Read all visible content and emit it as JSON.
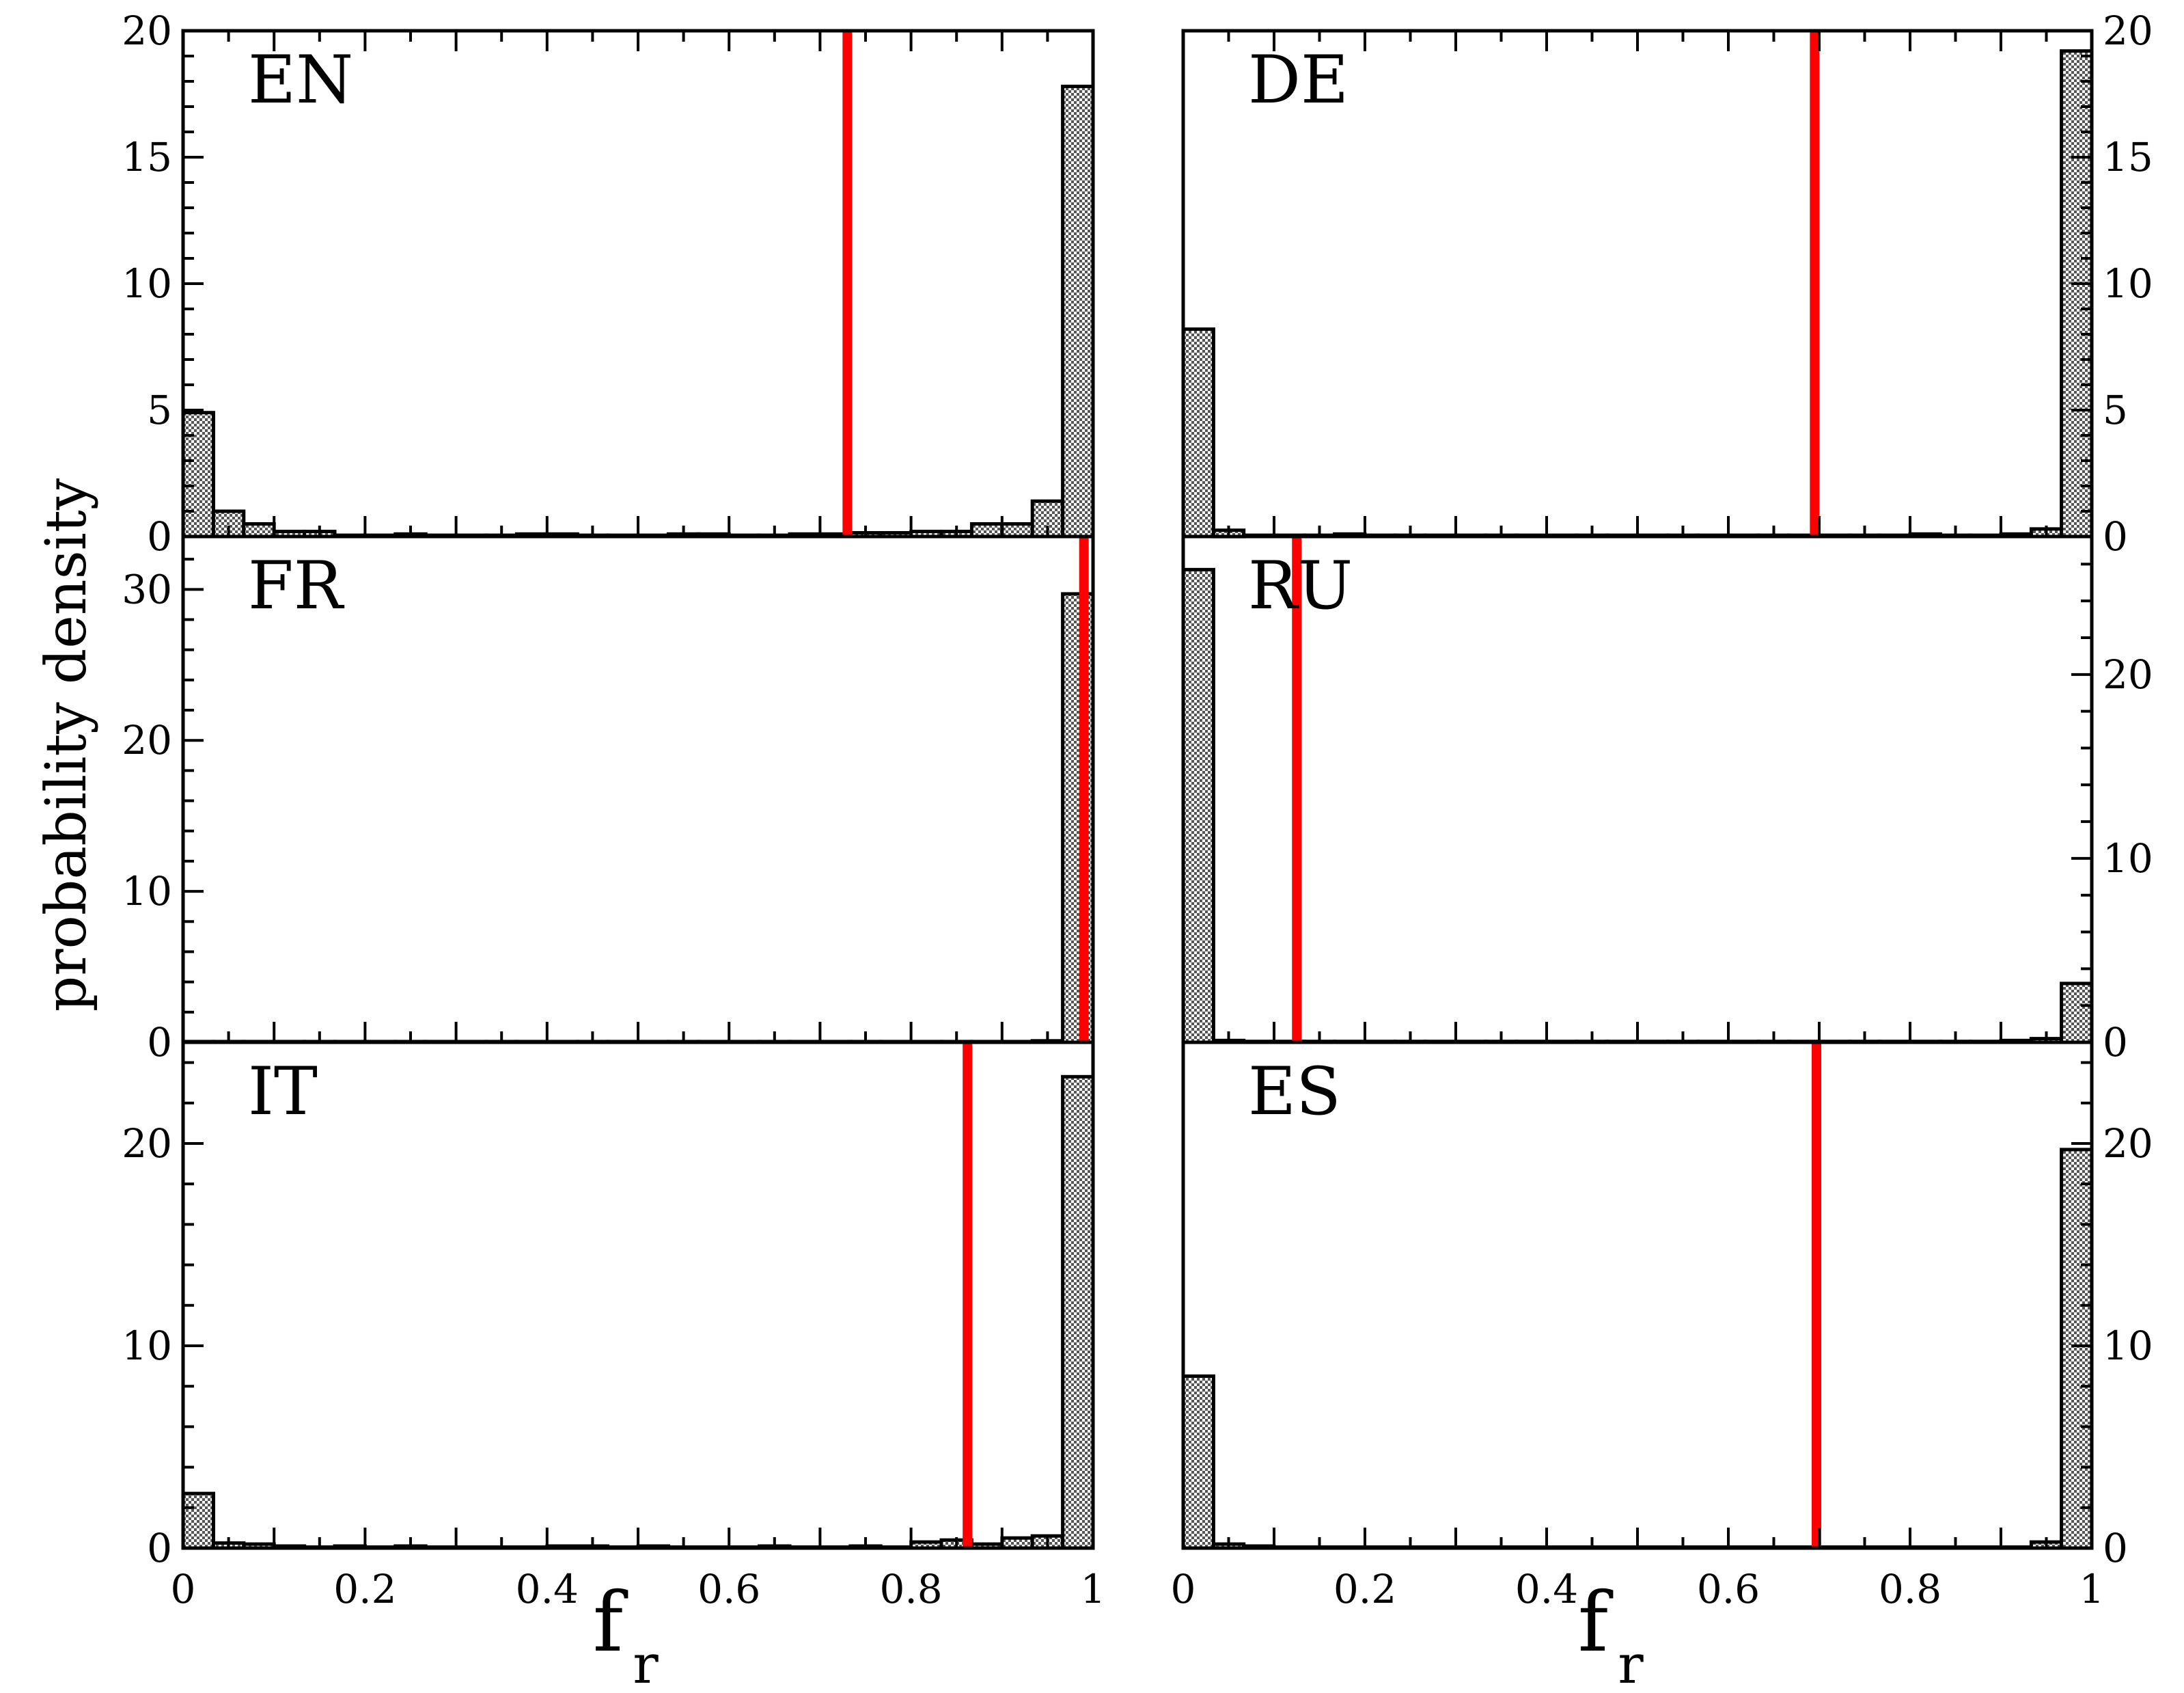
{
  "colors": {
    "bar_fill": "#b8b8b8",
    "bar_stroke": "#000000",
    "marker_line": "#ff0000",
    "background": "#ffffff"
  },
  "ylabel": "probability density",
  "xlabel": {
    "main": "f",
    "sub": "r"
  },
  "chart_data": [
    {
      "type": "bar",
      "label": "EN",
      "grid": false,
      "xlim": [
        0,
        1
      ],
      "ylim": [
        0,
        20
      ],
      "ytick_side": "left",
      "show_ylabels": true,
      "yticks": [
        "0",
        "5",
        "10",
        "15",
        "20"
      ],
      "bin_width": 0.0333,
      "x": [
        0.0167,
        0.05,
        0.0833,
        0.1167,
        0.15,
        0.1833,
        0.2167,
        0.25,
        0.2833,
        0.3167,
        0.35,
        0.3833,
        0.4167,
        0.45,
        0.4833,
        0.5167,
        0.55,
        0.5833,
        0.6167,
        0.65,
        0.6833,
        0.7167,
        0.75,
        0.7833,
        0.8167,
        0.85,
        0.8833,
        0.9167,
        0.95,
        0.9833
      ],
      "values": [
        4.9,
        1.0,
        0.5,
        0.2,
        0.2,
        0.05,
        0.05,
        0.1,
        0.05,
        0.05,
        0.05,
        0.1,
        0.1,
        0.05,
        0.05,
        0.05,
        0.1,
        0.1,
        0.05,
        0.05,
        0.1,
        0.1,
        0.15,
        0.15,
        0.2,
        0.2,
        0.5,
        0.5,
        1.4,
        17.8
      ],
      "marker_x": 0.73
    },
    {
      "type": "bar",
      "label": "DE",
      "grid": false,
      "xlim": [
        0,
        1
      ],
      "ylim": [
        0,
        20
      ],
      "ytick_side": "right",
      "show_ylabels": true,
      "yticks": [
        "0",
        "5",
        "10",
        "15",
        "20"
      ],
      "bin_width": 0.0333,
      "x": [
        0.0167,
        0.05,
        0.0833,
        0.1167,
        0.15,
        0.1833,
        0.2167,
        0.25,
        0.2833,
        0.3167,
        0.35,
        0.3833,
        0.4167,
        0.45,
        0.4833,
        0.5167,
        0.55,
        0.5833,
        0.6167,
        0.65,
        0.6833,
        0.7167,
        0.75,
        0.7833,
        0.8167,
        0.85,
        0.8833,
        0.9167,
        0.95,
        0.9833
      ],
      "values": [
        8.2,
        0.25,
        0.05,
        0.05,
        0.05,
        0.1,
        0.05,
        0.05,
        0.05,
        0.05,
        0.05,
        0.05,
        0.05,
        0.05,
        0.05,
        0.05,
        0.05,
        0.05,
        0.05,
        0.05,
        0.05,
        0.05,
        0.05,
        0.05,
        0.1,
        0.05,
        0.05,
        0.1,
        0.3,
        19.2
      ],
      "marker_x": 0.695
    },
    {
      "type": "bar",
      "label": "FR",
      "grid": false,
      "xlim": [
        0,
        1
      ],
      "ylim": [
        0,
        33.5
      ],
      "ytick_side": "left",
      "show_ylabels": true,
      "yticks": [
        "0",
        "10",
        "20",
        "30"
      ],
      "bin_width": 0.0333,
      "x": [
        0.0167,
        0.05,
        0.0833,
        0.1167,
        0.15,
        0.1833,
        0.2167,
        0.25,
        0.2833,
        0.3167,
        0.35,
        0.3833,
        0.4167,
        0.45,
        0.4833,
        0.5167,
        0.55,
        0.5833,
        0.6167,
        0.65,
        0.6833,
        0.7167,
        0.75,
        0.7833,
        0.8167,
        0.85,
        0.8833,
        0.9167,
        0.95,
        0.9833
      ],
      "values": [
        0.05,
        0.05,
        0.05,
        0.05,
        0.05,
        0.05,
        0.05,
        0.05,
        0.05,
        0.05,
        0.05,
        0.05,
        0.05,
        0.05,
        0.05,
        0.05,
        0.05,
        0.05,
        0.05,
        0.05,
        0.05,
        0.05,
        0.05,
        0.05,
        0.05,
        0.05,
        0.05,
        0.05,
        0.1,
        29.7
      ],
      "marker_x": 0.99
    },
    {
      "type": "bar",
      "label": "RU",
      "grid": false,
      "xlim": [
        0,
        1
      ],
      "ylim": [
        0,
        27.5
      ],
      "ytick_side": "right",
      "show_ylabels": true,
      "yticks": [
        "0",
        "10",
        "20"
      ],
      "bin_width": 0.0333,
      "x": [
        0.0167,
        0.05,
        0.0833,
        0.1167,
        0.15,
        0.1833,
        0.2167,
        0.25,
        0.2833,
        0.3167,
        0.35,
        0.3833,
        0.4167,
        0.45,
        0.4833,
        0.5167,
        0.55,
        0.5833,
        0.6167,
        0.65,
        0.6833,
        0.7167,
        0.75,
        0.7833,
        0.8167,
        0.85,
        0.8833,
        0.9167,
        0.95,
        0.9833
      ],
      "values": [
        25.7,
        0.1,
        0.05,
        0.05,
        0.05,
        0.05,
        0.05,
        0.05,
        0.05,
        0.05,
        0.05,
        0.05,
        0.05,
        0.05,
        0.05,
        0.05,
        0.05,
        0.05,
        0.05,
        0.05,
        0.05,
        0.05,
        0.05,
        0.05,
        0.05,
        0.05,
        0.05,
        0.1,
        0.2,
        3.2
      ],
      "marker_x": 0.125
    },
    {
      "type": "bar",
      "label": "IT",
      "grid": false,
      "xlim": [
        0,
        1
      ],
      "ylim": [
        0,
        25
      ],
      "ytick_side": "left",
      "show_ylabels": true,
      "yticks": [
        "0",
        "10",
        "20"
      ],
      "xticks": [
        "0",
        "0.2",
        "0.4",
        "0.6",
        "0.8",
        "1"
      ],
      "bin_width": 0.0333,
      "x": [
        0.0167,
        0.05,
        0.0833,
        0.1167,
        0.15,
        0.1833,
        0.2167,
        0.25,
        0.2833,
        0.3167,
        0.35,
        0.3833,
        0.4167,
        0.45,
        0.4833,
        0.5167,
        0.55,
        0.5833,
        0.6167,
        0.65,
        0.6833,
        0.7167,
        0.75,
        0.7833,
        0.8167,
        0.85,
        0.8833,
        0.9167,
        0.95,
        0.9833
      ],
      "values": [
        2.7,
        0.25,
        0.2,
        0.1,
        0.05,
        0.1,
        0.05,
        0.1,
        0.05,
        0.05,
        0.05,
        0.05,
        0.1,
        0.1,
        0.05,
        0.1,
        0.05,
        0.05,
        0.05,
        0.1,
        0.05,
        0.05,
        0.1,
        0.05,
        0.3,
        0.4,
        0.2,
        0.5,
        0.6,
        23.3
      ],
      "marker_x": 0.862
    },
    {
      "type": "bar",
      "label": "ES",
      "grid": false,
      "xlim": [
        0,
        1
      ],
      "ylim": [
        0,
        25
      ],
      "ytick_side": "right",
      "show_ylabels": true,
      "yticks": [
        "0",
        "10",
        "20"
      ],
      "xticks": [
        "0",
        "0.2",
        "0.4",
        "0.6",
        "0.8",
        "1"
      ],
      "bin_width": 0.0333,
      "x": [
        0.0167,
        0.05,
        0.0833,
        0.1167,
        0.15,
        0.1833,
        0.2167,
        0.25,
        0.2833,
        0.3167,
        0.35,
        0.3833,
        0.4167,
        0.45,
        0.4833,
        0.5167,
        0.55,
        0.5833,
        0.6167,
        0.65,
        0.6833,
        0.7167,
        0.75,
        0.7833,
        0.8167,
        0.85,
        0.8833,
        0.9167,
        0.95,
        0.9833
      ],
      "values": [
        8.5,
        0.2,
        0.1,
        0.05,
        0.05,
        0.05,
        0.05,
        0.05,
        0.05,
        0.05,
        0.05,
        0.05,
        0.05,
        0.05,
        0.05,
        0.05,
        0.05,
        0.05,
        0.05,
        0.05,
        0.05,
        0.05,
        0.05,
        0.05,
        0.05,
        0.05,
        0.05,
        0.05,
        0.3,
        19.7
      ],
      "marker_x": 0.697
    }
  ]
}
